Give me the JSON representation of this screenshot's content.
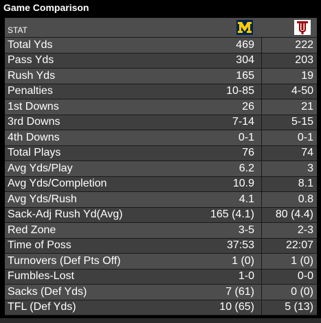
{
  "title": "Game Comparison",
  "header": {
    "stat_label": "STAT",
    "home_logo": "michigan-block-m-logo",
    "away_logo": "indiana-iu-logo",
    "home_color": "#FFCB05",
    "home_bg": "#00274C",
    "away_color": "#990000"
  },
  "rows": [
    {
      "label": "Total Yds",
      "home": "469",
      "away": "222"
    },
    {
      "label": "Pass Yds",
      "home": "304",
      "away": "203"
    },
    {
      "label": "Rush Yds",
      "home": "165",
      "away": "19"
    },
    {
      "label": "Penalties",
      "home": "10-85",
      "away": "4-50"
    },
    {
      "label": "1st Downs",
      "home": "26",
      "away": "21"
    },
    {
      "label": "3rd Downs",
      "home": "7-14",
      "away": "5-15"
    },
    {
      "label": "4th Downs",
      "home": "0-1",
      "away": "0-1"
    },
    {
      "label": "Total Plays",
      "home": "76",
      "away": "74"
    },
    {
      "label": "Avg Yds/Play",
      "home": "6.2",
      "away": "3"
    },
    {
      "label": "Avg Yds/Completion",
      "home": "10.9",
      "away": "8.1"
    },
    {
      "label": "Avg Yds/Rush",
      "home": "4.1",
      "away": "0.8"
    },
    {
      "label": "Sack-Adj Rush Yd(Avg)",
      "home": "165 (4.1)",
      "away": "80 (4.4)"
    },
    {
      "label": "Red Zone",
      "home": "3-5",
      "away": "2-3"
    },
    {
      "label": "Time of Poss",
      "home": "37:53",
      "away": "22:07"
    },
    {
      "label": "Turnovers (Def Pts Off)",
      "home": "1 (0)",
      "away": "1 (0)"
    },
    {
      "label": "Fumbles-Lost",
      "home": "1-0",
      "away": "0-0"
    },
    {
      "label": "Sacks (Def Yds)",
      "home": "7 (61)",
      "away": "0 (0)"
    },
    {
      "label": "TFL (Def Yds)",
      "home": "10 (65)",
      "away": "5 (13)"
    }
  ]
}
